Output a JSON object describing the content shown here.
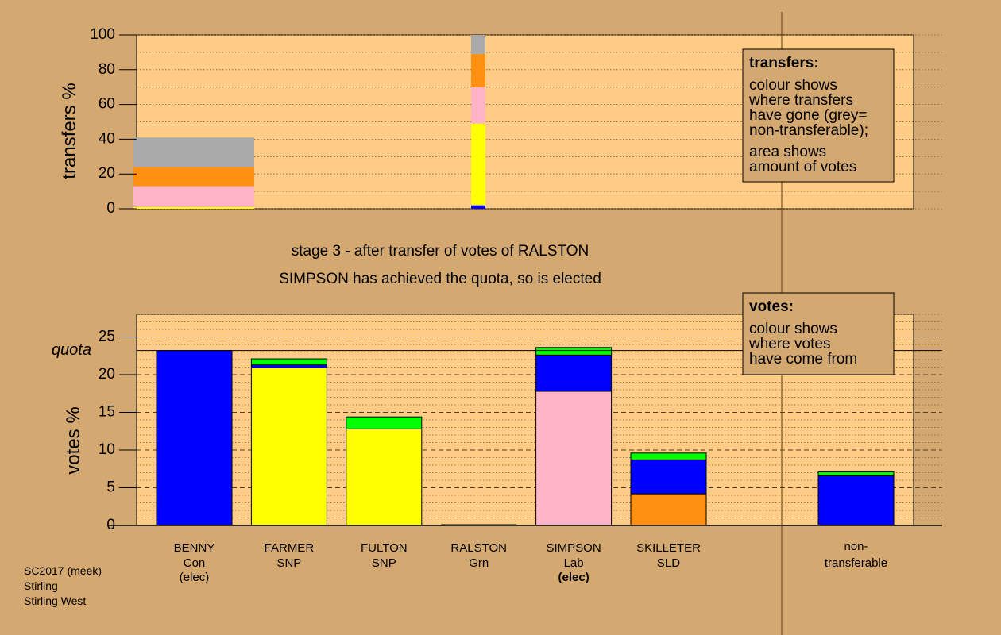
{
  "colors": {
    "background": "#d4a871",
    "plot_area": "#ffcc88",
    "Con": "#0000ff",
    "SNP": "#ffff00",
    "Grn": "#00ff00",
    "Lab": "#ffb3c6",
    "SLD": "#ff9010",
    "nontransferable": "#aaaaaa"
  },
  "captions": {
    "stage": "stage 3 - after transfer of votes of RALSTON",
    "result": "SIMPSON has achieved the quota, so is elected"
  },
  "legends": {
    "transfers": {
      "title": "transfers:",
      "lines1": [
        "colour shows",
        "where transfers",
        "have gone (grey=",
        "non-transferable);"
      ],
      "lines2": [
        "area shows",
        "amount of votes"
      ]
    },
    "votes": {
      "title": "votes:",
      "lines": [
        "colour shows",
        "where votes",
        "have come from"
      ]
    }
  },
  "footer": [
    "SC2017 (meek)",
    "Stirling",
    "Stirling West"
  ],
  "chart_data": [
    {
      "type": "bar",
      "name": "transfers",
      "ylabel": "transfers %",
      "ylim": [
        0,
        100
      ],
      "yticks": [
        0,
        20,
        40,
        60,
        80,
        100
      ],
      "grid": true,
      "bars": [
        {
          "position": "under BENNY (surplus transfer)",
          "segments": [
            {
              "party": "SNP",
              "value": 1
            },
            {
              "party": "Lab",
              "value": 12
            },
            {
              "party": "SLD",
              "value": 11
            },
            {
              "party": "nontransferable",
              "value": 17
            }
          ]
        },
        {
          "position": "RALSTON (eliminated)",
          "segments": [
            {
              "party": "Con",
              "value": 2
            },
            {
              "party": "SNP",
              "value": 47
            },
            {
              "party": "Lab",
              "value": 21
            },
            {
              "party": "SLD",
              "value": 19
            },
            {
              "party": "nontransferable",
              "value": 11
            }
          ]
        }
      ]
    },
    {
      "type": "bar",
      "name": "votes",
      "ylabel": "votes %",
      "ylim": [
        0,
        28
      ],
      "yticks": [
        0,
        5,
        10,
        15,
        20,
        25
      ],
      "quota": 23.2,
      "quota_label": "quota",
      "grid": true,
      "categories": [
        {
          "name": "BENNY",
          "party": "Con",
          "status": "(elec)",
          "status_bold": false,
          "segments": [
            {
              "party": "Con",
              "value": 23.2
            }
          ]
        },
        {
          "name": "FARMER",
          "party": "SNP",
          "status": "",
          "status_bold": false,
          "segments": [
            {
              "party": "SNP",
              "value": 20.9
            },
            {
              "party": "Con",
              "value": 0.4
            },
            {
              "party": "Grn",
              "value": 0.8
            }
          ]
        },
        {
          "name": "FULTON",
          "party": "SNP",
          "status": "",
          "status_bold": false,
          "segments": [
            {
              "party": "SNP",
              "value": 12.8
            },
            {
              "party": "Grn",
              "value": 1.6
            }
          ]
        },
        {
          "name": "RALSTON",
          "party": "Grn",
          "status": "",
          "status_bold": false,
          "segments": []
        },
        {
          "name": "SIMPSON",
          "party": "Lab",
          "status": "(elec)",
          "status_bold": true,
          "segments": [
            {
              "party": "Lab",
              "value": 17.8
            },
            {
              "party": "Con",
              "value": 4.8
            },
            {
              "party": "Grn",
              "value": 1.0
            }
          ]
        },
        {
          "name": "SKILLETER",
          "party": "SLD",
          "status": "",
          "status_bold": false,
          "segments": [
            {
              "party": "SLD",
              "value": 4.2
            },
            {
              "party": "Con",
              "value": 4.5
            },
            {
              "party": "Grn",
              "value": 0.9
            }
          ]
        }
      ],
      "nontransferable": {
        "label_lines": [
          "non-",
          "transferable"
        ],
        "segments": [
          {
            "party": "Con",
            "value": 6.6
          },
          {
            "party": "Grn",
            "value": 0.5
          }
        ]
      }
    }
  ]
}
